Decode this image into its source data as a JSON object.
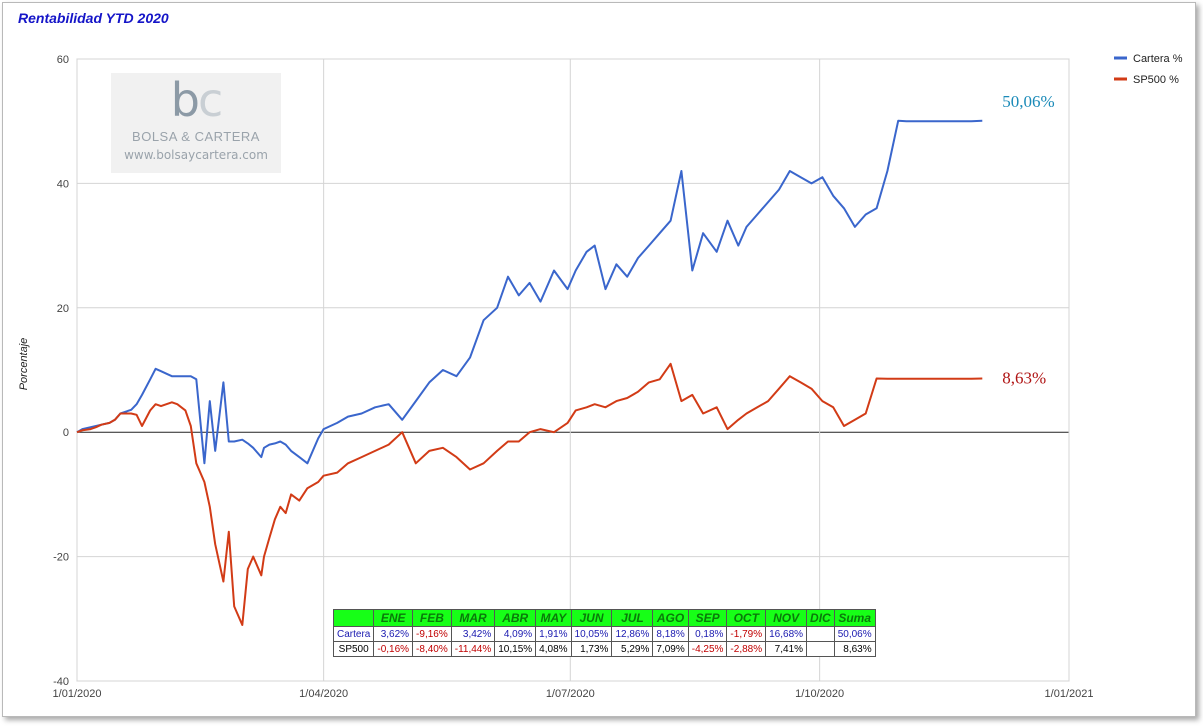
{
  "title": "Rentabilidad YTD 2020",
  "chart_data": {
    "type": "line",
    "ylabel": "Porcentaje",
    "ylim": [
      -40,
      60
    ],
    "yticks": [
      "60",
      "40",
      "20",
      "0",
      "-20",
      "-40"
    ],
    "x_range": [
      "2020-01-01",
      "2021-01-01"
    ],
    "xticks": [
      "1/01/2020",
      "1/04/2020",
      "1/07/2020",
      "1/10/2020",
      "1/01/2021"
    ],
    "legend_position": "top-right",
    "grid": true,
    "series": [
      {
        "name": "Cartera %",
        "color": "#3a66cc",
        "end_label": "50,06%",
        "end_label_color": "#1a8ab8",
        "x": [
          "2020-01-01",
          "2020-01-03",
          "2020-01-06",
          "2020-01-08",
          "2020-01-10",
          "2020-01-13",
          "2020-01-15",
          "2020-01-17",
          "2020-01-21",
          "2020-01-23",
          "2020-01-25",
          "2020-01-28",
          "2020-01-30",
          "2020-02-01",
          "2020-02-03",
          "2020-02-05",
          "2020-02-07",
          "2020-02-10",
          "2020-02-12",
          "2020-02-14",
          "2020-02-17",
          "2020-02-19",
          "2020-02-21",
          "2020-02-24",
          "2020-02-26",
          "2020-02-28",
          "2020-03-02",
          "2020-03-04",
          "2020-03-06",
          "2020-03-09",
          "2020-03-10",
          "2020-03-12",
          "2020-03-14",
          "2020-03-16",
          "2020-03-18",
          "2020-03-20",
          "2020-03-23",
          "2020-03-26",
          "2020-03-30",
          "2020-04-01",
          "2020-04-06",
          "2020-04-10",
          "2020-04-15",
          "2020-04-20",
          "2020-04-25",
          "2020-04-30",
          "2020-05-05",
          "2020-05-10",
          "2020-05-15",
          "2020-05-20",
          "2020-05-25",
          "2020-05-30",
          "2020-06-04",
          "2020-06-08",
          "2020-06-12",
          "2020-06-16",
          "2020-06-20",
          "2020-06-25",
          "2020-06-30",
          "2020-07-03",
          "2020-07-07",
          "2020-07-10",
          "2020-07-14",
          "2020-07-18",
          "2020-07-22",
          "2020-07-26",
          "2020-07-30",
          "2020-08-03",
          "2020-08-07",
          "2020-08-11",
          "2020-08-15",
          "2020-08-19",
          "2020-08-24",
          "2020-08-28",
          "2020-09-01",
          "2020-09-04",
          "2020-09-08",
          "2020-09-12",
          "2020-09-16",
          "2020-09-20",
          "2020-09-24",
          "2020-09-28",
          "2020-10-02",
          "2020-10-06",
          "2020-10-10",
          "2020-10-14",
          "2020-10-18",
          "2020-10-22",
          "2020-10-26",
          "2020-10-30",
          "2020-11-02",
          "2020-11-05",
          "2020-11-09",
          "2020-11-13",
          "2020-11-17",
          "2020-11-22",
          "2020-11-26",
          "2020-11-30"
        ],
        "values": [
          0.0,
          0.5,
          0.8,
          1.0,
          1.2,
          1.5,
          2.0,
          3.0,
          3.6,
          4.5,
          6.0,
          8.5,
          10.2,
          9.8,
          9.4,
          9.0,
          9.0,
          9.0,
          9.0,
          8.5,
          -5.0,
          5.0,
          -3.0,
          8.0,
          -1.5,
          -1.5,
          -1.2,
          -1.8,
          -2.5,
          -4.0,
          -2.5,
          -2.0,
          -1.8,
          -1.5,
          -2.0,
          -3.0,
          -4.0,
          -5.0,
          -1.0,
          0.5,
          1.5,
          2.5,
          3.0,
          4.0,
          4.5,
          2.0,
          5.0,
          8.0,
          10.0,
          9.0,
          12.0,
          18.0,
          20.0,
          25.0,
          22.0,
          24.0,
          21.0,
          26.0,
          23.0,
          26.0,
          29.0,
          30.0,
          23.0,
          27.0,
          25.0,
          28.0,
          30.0,
          32.0,
          34.0,
          42.0,
          26.0,
          32.0,
          29.0,
          34.0,
          30.0,
          33.0,
          35.0,
          37.0,
          39.0,
          42.0,
          41.0,
          40.0,
          41.0,
          38.0,
          36.0,
          33.0,
          35.0,
          36.0,
          42.0,
          50.06,
          50.0,
          50.0,
          50.0,
          50.0,
          50.0,
          50.0,
          50.0,
          50.06
        ]
      },
      {
        "name": "SP500 %",
        "color": "#d23b16",
        "end_label": "8,63%",
        "end_label_color": "#b01515",
        "x": [
          "2020-01-01",
          "2020-01-03",
          "2020-01-06",
          "2020-01-08",
          "2020-01-10",
          "2020-01-13",
          "2020-01-15",
          "2020-01-17",
          "2020-01-21",
          "2020-01-23",
          "2020-01-25",
          "2020-01-28",
          "2020-01-30",
          "2020-02-01",
          "2020-02-03",
          "2020-02-05",
          "2020-02-07",
          "2020-02-10",
          "2020-02-12",
          "2020-02-14",
          "2020-02-17",
          "2020-02-19",
          "2020-02-21",
          "2020-02-24",
          "2020-02-26",
          "2020-02-28",
          "2020-03-02",
          "2020-03-04",
          "2020-03-06",
          "2020-03-09",
          "2020-03-10",
          "2020-03-12",
          "2020-03-14",
          "2020-03-16",
          "2020-03-18",
          "2020-03-20",
          "2020-03-23",
          "2020-03-26",
          "2020-03-30",
          "2020-04-01",
          "2020-04-06",
          "2020-04-10",
          "2020-04-15",
          "2020-04-20",
          "2020-04-25",
          "2020-04-30",
          "2020-05-05",
          "2020-05-10",
          "2020-05-15",
          "2020-05-20",
          "2020-05-25",
          "2020-05-30",
          "2020-06-04",
          "2020-06-08",
          "2020-06-12",
          "2020-06-16",
          "2020-06-20",
          "2020-06-25",
          "2020-06-30",
          "2020-07-03",
          "2020-07-07",
          "2020-07-10",
          "2020-07-14",
          "2020-07-18",
          "2020-07-22",
          "2020-07-26",
          "2020-07-30",
          "2020-08-03",
          "2020-08-07",
          "2020-08-11",
          "2020-08-15",
          "2020-08-19",
          "2020-08-24",
          "2020-08-28",
          "2020-09-01",
          "2020-09-04",
          "2020-09-08",
          "2020-09-12",
          "2020-09-16",
          "2020-09-20",
          "2020-09-24",
          "2020-09-28",
          "2020-10-02",
          "2020-10-06",
          "2020-10-10",
          "2020-10-14",
          "2020-10-18",
          "2020-10-22",
          "2020-10-26",
          "2020-10-30",
          "2020-11-02",
          "2020-11-05",
          "2020-11-09",
          "2020-11-13",
          "2020-11-17",
          "2020-11-22",
          "2020-11-26",
          "2020-11-30"
        ],
        "values": [
          0.0,
          0.3,
          0.5,
          0.8,
          1.2,
          1.5,
          2.0,
          3.0,
          3.0,
          2.8,
          1.0,
          3.5,
          4.5,
          4.2,
          4.5,
          4.8,
          4.5,
          3.5,
          1.0,
          -5.0,
          -8.0,
          -12.0,
          -18.0,
          -24.0,
          -16.0,
          -28.0,
          -31.0,
          -22.0,
          -20.0,
          -23.0,
          -20.0,
          -17.0,
          -14.0,
          -12.0,
          -13.0,
          -10.0,
          -11.0,
          -9.0,
          -8.0,
          -7.0,
          -6.5,
          -5.0,
          -4.0,
          -3.0,
          -2.0,
          0.0,
          -5.0,
          -3.0,
          -2.5,
          -4.0,
          -6.0,
          -5.0,
          -3.0,
          -1.5,
          -1.5,
          0.0,
          0.5,
          0.0,
          1.5,
          3.5,
          4.0,
          4.5,
          4.0,
          5.0,
          5.5,
          6.5,
          8.0,
          8.5,
          11.0,
          5.0,
          6.0,
          3.0,
          4.0,
          0.5,
          2.0,
          3.0,
          4.0,
          5.0,
          7.0,
          9.0,
          8.0,
          7.0,
          5.0,
          4.0,
          1.0,
          2.0,
          3.0,
          8.63,
          8.6,
          8.6,
          8.6,
          8.6,
          8.6,
          8.6,
          8.6,
          8.6,
          8.6,
          8.63
        ]
      }
    ]
  },
  "watermark": {
    "logo_b": "b",
    "logo_c": "c",
    "name": "BOLSA & CARTERA",
    "url": "www.bolsaycartera.com"
  },
  "table": {
    "headers": [
      "",
      "ENE",
      "FEB",
      "MAR",
      "ABR",
      "MAY",
      "JUN",
      "JUL",
      "AGO",
      "SEP",
      "OCT",
      "NOV",
      "DIC",
      "Suma"
    ],
    "rows": [
      {
        "label": "Cartera",
        "values": [
          "3,62%",
          "-9,16%",
          "3,42%",
          "4,09%",
          "1,91%",
          "10,05%",
          "12,86%",
          "8,18%",
          "0,18%",
          "-1,79%",
          "16,68%",
          "",
          "50,06%"
        ]
      },
      {
        "label": "SP500",
        "values": [
          "-0,16%",
          "-8,40%",
          "-11,44%",
          "10,15%",
          "4,08%",
          "1,73%",
          "5,29%",
          "7,09%",
          "-4,25%",
          "-2,88%",
          "7,41%",
          "",
          "8,63%"
        ]
      }
    ]
  }
}
